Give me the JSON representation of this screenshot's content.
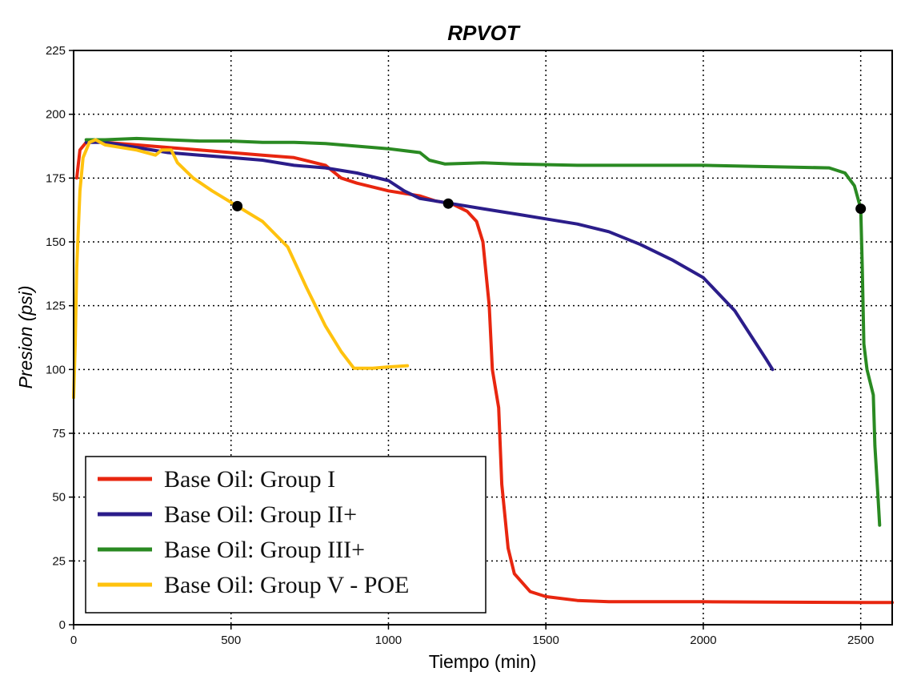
{
  "chart_data": {
    "type": "line",
    "title": "RPVOT",
    "xlabel": "Tiempo (min)",
    "ylabel": "Presion (psi)",
    "xlim": [
      0,
      2600
    ],
    "ylim": [
      0,
      225
    ],
    "xticks": [
      0,
      500,
      1000,
      1500,
      2000,
      2500
    ],
    "yticks": [
      0,
      25,
      50,
      75,
      100,
      125,
      150,
      175,
      200,
      225
    ],
    "grid": "dotted",
    "legend_position": "bottom-left",
    "series": [
      {
        "name": "Base Oil: Group I",
        "color": "#e8260f",
        "points": [
          [
            10,
            175
          ],
          [
            20,
            186
          ],
          [
            40,
            189
          ],
          [
            60,
            190
          ],
          [
            100,
            189
          ],
          [
            200,
            188
          ],
          [
            300,
            187
          ],
          [
            400,
            186
          ],
          [
            500,
            185
          ],
          [
            600,
            184
          ],
          [
            700,
            183
          ],
          [
            800,
            180
          ],
          [
            850,
            175
          ],
          [
            900,
            173
          ],
          [
            1000,
            170
          ],
          [
            1100,
            168
          ],
          [
            1150,
            166
          ],
          [
            1200,
            165
          ],
          [
            1250,
            162
          ],
          [
            1280,
            158
          ],
          [
            1300,
            150
          ],
          [
            1320,
            125
          ],
          [
            1330,
            100
          ],
          [
            1350,
            85
          ],
          [
            1360,
            55
          ],
          [
            1380,
            30
          ],
          [
            1400,
            20
          ],
          [
            1450,
            13
          ],
          [
            1500,
            11
          ],
          [
            1600,
            9.5
          ],
          [
            1700,
            9
          ],
          [
            2000,
            9
          ],
          [
            2500,
            8.7
          ],
          [
            2600,
            8.7
          ]
        ]
      },
      {
        "name": "Base Oil: Group II+",
        "color": "#2b1d8a",
        "points": [
          [
            40,
            189
          ],
          [
            100,
            189
          ],
          [
            200,
            187
          ],
          [
            300,
            185
          ],
          [
            400,
            184
          ],
          [
            500,
            183
          ],
          [
            600,
            182
          ],
          [
            700,
            180
          ],
          [
            800,
            179
          ],
          [
            900,
            177
          ],
          [
            1000,
            174
          ],
          [
            1050,
            170
          ],
          [
            1100,
            167
          ],
          [
            1200,
            165
          ],
          [
            1300,
            163
          ],
          [
            1400,
            161
          ],
          [
            1500,
            159
          ],
          [
            1600,
            157
          ],
          [
            1700,
            154
          ],
          [
            1800,
            149
          ],
          [
            1900,
            143
          ],
          [
            2000,
            136
          ],
          [
            2100,
            123
          ],
          [
            2200,
            104
          ],
          [
            2220,
            100
          ]
        ]
      },
      {
        "name": "Base Oil: Group III+",
        "color": "#2a8a22",
        "points": [
          [
            40,
            190
          ],
          [
            100,
            190
          ],
          [
            200,
            190.5
          ],
          [
            300,
            190
          ],
          [
            400,
            189.5
          ],
          [
            500,
            189.5
          ],
          [
            600,
            189
          ],
          [
            700,
            189
          ],
          [
            800,
            188.5
          ],
          [
            900,
            187.5
          ],
          [
            1000,
            186.5
          ],
          [
            1100,
            185
          ],
          [
            1130,
            182
          ],
          [
            1180,
            180.5
          ],
          [
            1300,
            181
          ],
          [
            1400,
            180.5
          ],
          [
            1600,
            180
          ],
          [
            2000,
            180
          ],
          [
            2400,
            179
          ],
          [
            2450,
            177
          ],
          [
            2480,
            172
          ],
          [
            2500,
            163
          ],
          [
            2505,
            140
          ],
          [
            2510,
            110
          ],
          [
            2520,
            100
          ],
          [
            2540,
            90
          ],
          [
            2545,
            70
          ],
          [
            2555,
            50
          ],
          [
            2560,
            39
          ]
        ]
      },
      {
        "name": "Base Oil: Group V - POE",
        "color": "#ffc20e",
        "points": [
          [
            0,
            89
          ],
          [
            5,
            110
          ],
          [
            10,
            140
          ],
          [
            20,
            170
          ],
          [
            30,
            183
          ],
          [
            50,
            189
          ],
          [
            70,
            190
          ],
          [
            100,
            188
          ],
          [
            200,
            186
          ],
          [
            260,
            184
          ],
          [
            280,
            186
          ],
          [
            310,
            186
          ],
          [
            330,
            181
          ],
          [
            380,
            175
          ],
          [
            440,
            170
          ],
          [
            520,
            164
          ],
          [
            600,
            158
          ],
          [
            680,
            148
          ],
          [
            740,
            132
          ],
          [
            800,
            117
          ],
          [
            850,
            107
          ],
          [
            890,
            100.5
          ],
          [
            950,
            100.5
          ],
          [
            1000,
            101
          ],
          [
            1060,
            101.5
          ]
        ]
      }
    ],
    "markers": [
      [
        520,
        164
      ],
      [
        1190,
        165
      ],
      [
        2500,
        163
      ]
    ]
  }
}
